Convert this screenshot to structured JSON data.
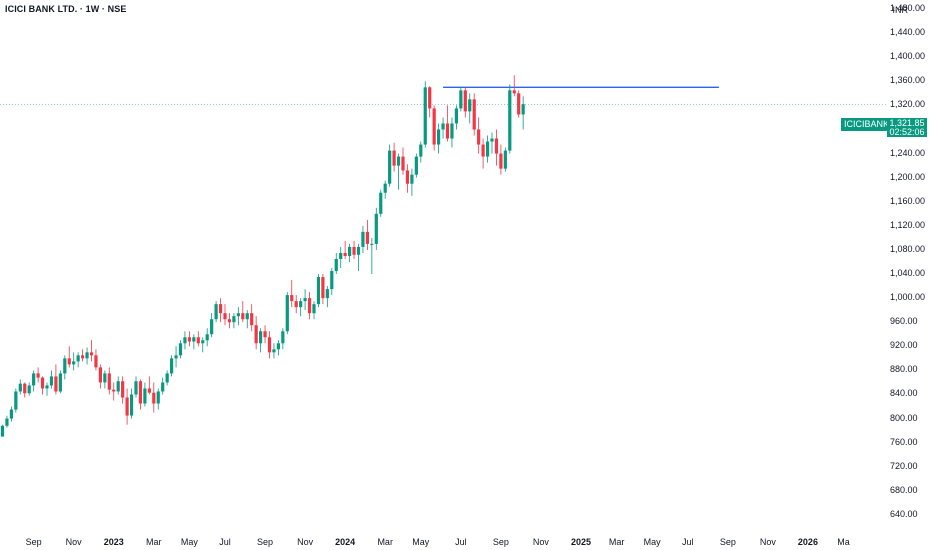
{
  "header": {
    "title": "ICICI BANK LTD. · 1W · NSE",
    "currency": "INR"
  },
  "price_tag": {
    "symbol": "ICICIBANK",
    "price": "1,321.85",
    "countdown": "02:52:06"
  },
  "colors": {
    "up": "#089981",
    "down": "#f23645",
    "resistance": "#2962ff",
    "price_line": "#089981"
  },
  "chart_data": {
    "type": "candlestick",
    "title": "ICICI BANK LTD. · 1W · NSE",
    "timeframe": "1W",
    "exchange": "NSE",
    "currency": "INR",
    "ylim": [
      615,
      1495
    ],
    "y_ticks": [
      "1,480.00",
      "1,440.00",
      "1,400.00",
      "1,360.00",
      "1,320.00",
      "1,280.00",
      "1,240.00",
      "1,200.00",
      "1,160.00",
      "1,120.00",
      "1,080.00",
      "1,040.00",
      "1,000.00",
      "960.00",
      "920.00",
      "880.00",
      "840.00",
      "800.00",
      "760.00",
      "720.00",
      "680.00",
      "640.00"
    ],
    "y_tick_values": [
      1480,
      1440,
      1400,
      1360,
      1320,
      1280,
      1240,
      1200,
      1160,
      1120,
      1080,
      1040,
      1000,
      960,
      920,
      880,
      840,
      800,
      760,
      720,
      680,
      640
    ],
    "x_ticks": [
      "Sep",
      "Nov",
      "2023",
      "Mar",
      "May",
      "Jul",
      "Sep",
      "Nov",
      "2024",
      "Mar",
      "May",
      "Jul",
      "Sep",
      "Nov",
      "2025",
      "Mar",
      "May",
      "Jul",
      "Sep",
      "Nov",
      "2026",
      "Ma"
    ],
    "x_tick_bold": [
      false,
      false,
      true,
      false,
      false,
      false,
      false,
      false,
      true,
      false,
      false,
      false,
      false,
      false,
      true,
      false,
      false,
      false,
      false,
      false,
      true,
      false
    ],
    "x_tick_index": [
      7,
      16,
      25,
      34,
      42,
      50,
      59,
      68,
      77,
      86,
      94,
      103,
      112,
      121,
      130,
      138,
      146,
      154,
      163,
      172,
      181,
      189
    ],
    "last_price": 1321.85,
    "resistance": {
      "value": 1350,
      "from_index": 99,
      "to_index": 161
    },
    "candles": [
      [
        770,
        790,
        775,
        788
      ],
      [
        788,
        805,
        785,
        800
      ],
      [
        800,
        820,
        795,
        815
      ],
      [
        815,
        850,
        810,
        845
      ],
      [
        845,
        865,
        840,
        858
      ],
      [
        858,
        860,
        835,
        842
      ],
      [
        842,
        860,
        838,
        855
      ],
      [
        855,
        880,
        845,
        875
      ],
      [
        875,
        885,
        860,
        868
      ],
      [
        868,
        870,
        840,
        850
      ],
      [
        850,
        860,
        838,
        855
      ],
      [
        855,
        880,
        850,
        870
      ],
      [
        870,
        890,
        840,
        845
      ],
      [
        845,
        880,
        842,
        875
      ],
      [
        875,
        905,
        865,
        900
      ],
      [
        900,
        920,
        885,
        890
      ],
      [
        890,
        910,
        880,
        895
      ],
      [
        895,
        910,
        885,
        905
      ],
      [
        905,
        915,
        895,
        900
      ],
      [
        900,
        918,
        890,
        910
      ],
      [
        910,
        930,
        895,
        905
      ],
      [
        905,
        915,
        880,
        885
      ],
      [
        885,
        890,
        850,
        860
      ],
      [
        860,
        880,
        850,
        875
      ],
      [
        875,
        885,
        840,
        848
      ],
      [
        848,
        860,
        830,
        845
      ],
      [
        845,
        870,
        840,
        862
      ],
      [
        862,
        870,
        825,
        835
      ],
      [
        835,
        850,
        790,
        805
      ],
      [
        805,
        850,
        800,
        840
      ],
      [
        840,
        870,
        835,
        862
      ],
      [
        862,
        865,
        815,
        825
      ],
      [
        825,
        860,
        820,
        850
      ],
      [
        850,
        870,
        840,
        843
      ],
      [
        843,
        860,
        810,
        825
      ],
      [
        825,
        850,
        815,
        845
      ],
      [
        845,
        868,
        840,
        860
      ],
      [
        860,
        880,
        855,
        875
      ],
      [
        875,
        905,
        870,
        900
      ],
      [
        900,
        920,
        885,
        905
      ],
      [
        905,
        930,
        900,
        925
      ],
      [
        925,
        945,
        915,
        935
      ],
      [
        935,
        945,
        920,
        928
      ],
      [
        928,
        940,
        915,
        935
      ],
      [
        935,
        945,
        920,
        925
      ],
      [
        925,
        935,
        910,
        930
      ],
      [
        930,
        950,
        920,
        940
      ],
      [
        940,
        975,
        935,
        965
      ],
      [
        965,
        995,
        960,
        990
      ],
      [
        990,
        1000,
        960,
        975
      ],
      [
        975,
        990,
        955,
        965
      ],
      [
        965,
        975,
        950,
        960
      ],
      [
        960,
        975,
        950,
        970
      ],
      [
        970,
        985,
        955,
        975
      ],
      [
        975,
        995,
        960,
        965
      ],
      [
        965,
        980,
        950,
        975
      ],
      [
        975,
        990,
        945,
        955
      ],
      [
        955,
        970,
        915,
        925
      ],
      [
        925,
        950,
        910,
        945
      ],
      [
        945,
        955,
        925,
        935
      ],
      [
        935,
        945,
        900,
        910
      ],
      [
        910,
        925,
        900,
        915
      ],
      [
        915,
        930,
        905,
        925
      ],
      [
        925,
        950,
        915,
        945
      ],
      [
        945,
        1010,
        940,
        1005
      ],
      [
        1005,
        1030,
        985,
        995
      ],
      [
        995,
        1005,
        975,
        985
      ],
      [
        985,
        1000,
        970,
        995
      ],
      [
        995,
        1015,
        980,
        1000
      ],
      [
        1000,
        1010,
        965,
        975
      ],
      [
        975,
        995,
        965,
        990
      ],
      [
        990,
        1040,
        985,
        1035
      ],
      [
        1035,
        1040,
        990,
        1000
      ],
      [
        1000,
        1020,
        985,
        1015
      ],
      [
        1015,
        1050,
        1005,
        1045
      ],
      [
        1045,
        1075,
        1040,
        1065
      ],
      [
        1065,
        1085,
        1050,
        1075
      ],
      [
        1075,
        1095,
        1065,
        1070
      ],
      [
        1070,
        1090,
        1060,
        1085
      ],
      [
        1085,
        1095,
        1065,
        1072
      ],
      [
        1072,
        1090,
        1045,
        1085
      ],
      [
        1085,
        1120,
        1075,
        1110
      ],
      [
        1110,
        1130,
        1080,
        1090
      ],
      [
        1090,
        1100,
        1040,
        1090
      ],
      [
        1090,
        1150,
        1080,
        1140
      ],
      [
        1140,
        1180,
        1135,
        1175
      ],
      [
        1175,
        1195,
        1165,
        1190
      ],
      [
        1190,
        1255,
        1185,
        1245
      ],
      [
        1245,
        1258,
        1210,
        1220
      ],
      [
        1220,
        1240,
        1180,
        1235
      ],
      [
        1235,
        1250,
        1205,
        1212
      ],
      [
        1212,
        1222,
        1175,
        1190
      ],
      [
        1190,
        1215,
        1170,
        1205
      ],
      [
        1205,
        1240,
        1200,
        1235
      ],
      [
        1235,
        1260,
        1225,
        1255
      ],
      [
        1255,
        1360,
        1250,
        1350
      ],
      [
        1350,
        1352,
        1300,
        1315
      ],
      [
        1315,
        1320,
        1245,
        1255
      ],
      [
        1255,
        1290,
        1240,
        1280
      ],
      [
        1280,
        1300,
        1265,
        1290
      ],
      [
        1290,
        1320,
        1260,
        1265
      ],
      [
        1265,
        1300,
        1250,
        1290
      ],
      [
        1290,
        1320,
        1280,
        1315
      ],
      [
        1315,
        1350,
        1310,
        1345
      ],
      [
        1345,
        1350,
        1300,
        1310
      ],
      [
        1310,
        1340,
        1290,
        1330
      ],
      [
        1330,
        1340,
        1270,
        1280
      ],
      [
        1280,
        1300,
        1240,
        1255
      ],
      [
        1255,
        1265,
        1215,
        1235
      ],
      [
        1235,
        1270,
        1225,
        1260
      ],
      [
        1260,
        1275,
        1240,
        1265
      ],
      [
        1265,
        1280,
        1220,
        1240
      ],
      [
        1240,
        1255,
        1205,
        1215
      ],
      [
        1215,
        1250,
        1210,
        1245
      ],
      [
        1245,
        1355,
        1240,
        1345
      ],
      [
        1345,
        1370,
        1335,
        1340
      ],
      [
        1340,
        1345,
        1300,
        1305
      ],
      [
        1305,
        1335,
        1280,
        1322
      ]
    ]
  }
}
